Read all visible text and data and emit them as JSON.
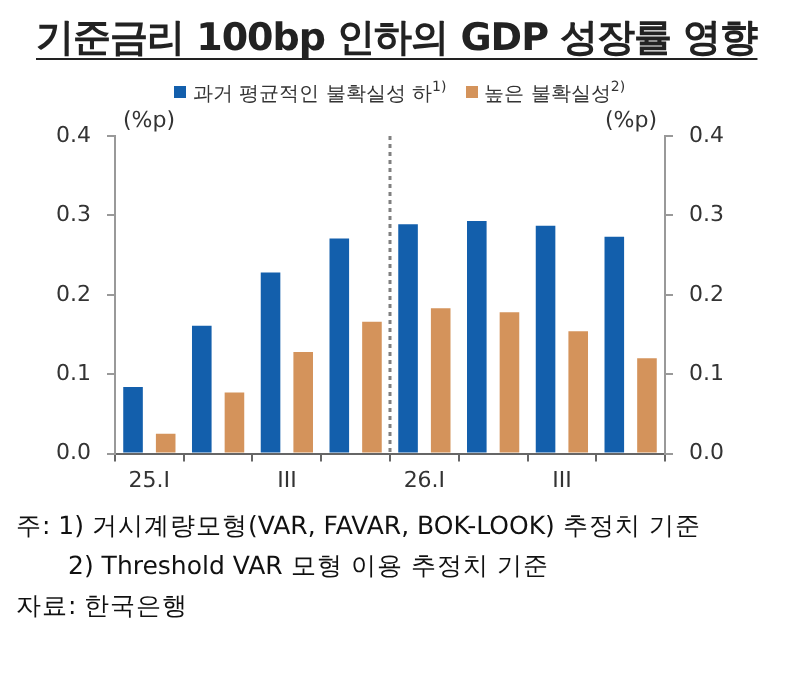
{
  "chart_data": {
    "type": "bar",
    "title": "기준금리 100bp 인하의 GDP 성장률 영향",
    "ylabel": "(%p)",
    "y2label": "(%p)",
    "categories": [
      "25.I",
      null,
      "III",
      null,
      "26.I",
      null,
      "III",
      null
    ],
    "series": [
      {
        "name": "과거 평균적인 불확실성 하$^{1)}$",
        "color": "#135fac",
        "values": [
          0.084,
          0.161,
          0.228,
          0.271,
          0.289,
          0.293,
          0.287,
          0.273
        ]
      },
      {
        "name": "높은 불확실성$^{2)}$",
        "color": "#d4935b",
        "values": [
          0.025,
          0.077,
          0.128,
          0.166,
          0.183,
          0.178,
          0.154,
          0.12
        ]
      }
    ],
    "ylim": [
      0,
      0.4
    ],
    "yticks": [
      {
        "value": 0,
        "label": "0.0"
      },
      0.1,
      0.2,
      0.3,
      0.4
    ],
    "y2lim": [
      0,
      0.4
    ],
    "y2ticks": [
      {
        "value": 0,
        "label": "0.0"
      },
      0.1,
      0.2,
      0.3,
      0.4
    ],
    "grid": false,
    "legend": "top",
    "annotations": [
      "주: 1) 거시계량모형(VAR, FAVAR, BOK-LOOK) 추정치 기준",
      "2) Threshold VAR 모형 이용 추정치 기준",
      "자료: 한국은행"
    ]
  }
}
